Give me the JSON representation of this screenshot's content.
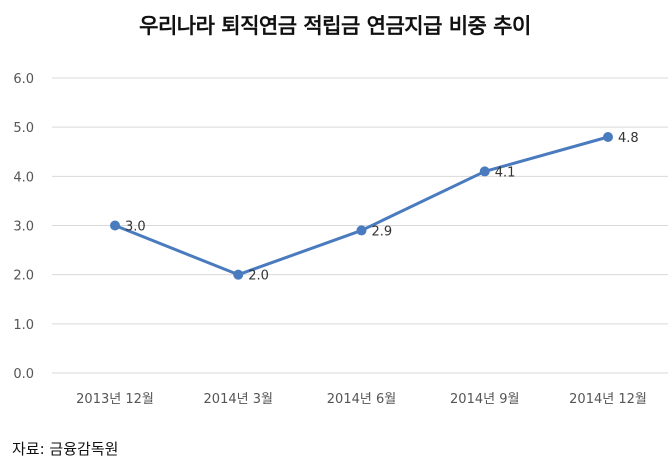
{
  "title": "우리나라 퇴직연금 적립금 연금지급 비중 추이",
  "source": "자료: 금융감독원",
  "colors": {
    "series": "#4a7bbf",
    "grid": "#d9d9d9",
    "axis_text": "#555555"
  },
  "chart_data": {
    "type": "line",
    "title": "우리나라 퇴직연금 적립금 연금지급 비중 추이",
    "categories": [
      "2013년 12월",
      "2014년 3월",
      "2014년 6월",
      "2014년 9월",
      "2014년 12월"
    ],
    "series": [
      {
        "values": [
          3.0,
          2.0,
          2.9,
          4.1,
          4.8
        ]
      }
    ],
    "data_labels": [
      "3.0",
      "2.0",
      "2.9",
      "4.1",
      "4.8"
    ],
    "y_ticks": [
      "0.0",
      "1.0",
      "2.0",
      "3.0",
      "4.0",
      "5.0",
      "6.0"
    ],
    "ylim": [
      0,
      6
    ],
    "grid": true,
    "xlabel": "",
    "ylabel": ""
  }
}
